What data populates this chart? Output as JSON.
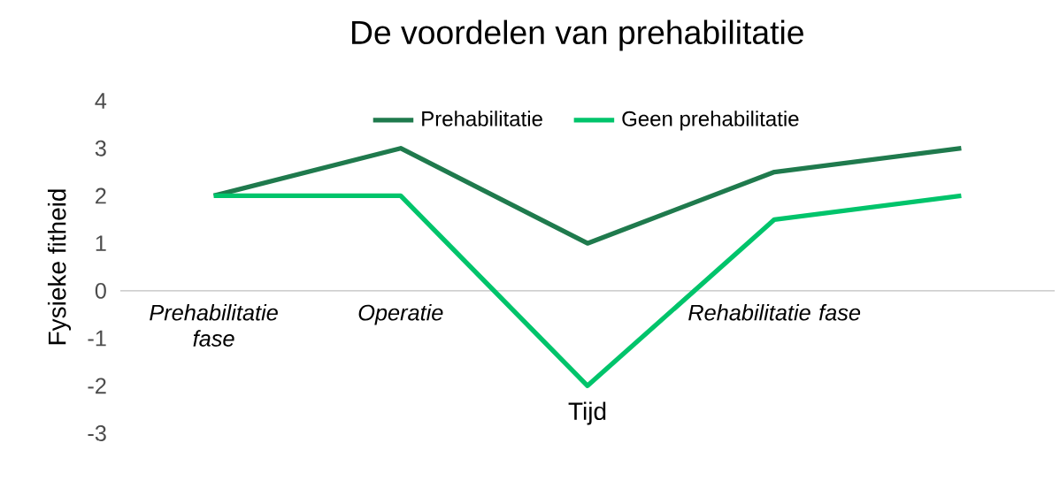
{
  "chart_data": {
    "type": "line",
    "title": "De voordelen van prehabilitatie",
    "xlabel": "Tijd",
    "ylabel": "Fysieke fitheid",
    "categories": [
      "*Prehabilitatie fase*",
      "*Operatie*",
      null,
      "*Rehabilitatie fase*",
      null
    ],
    "series": [
      {
        "name": "Prehabilitatie",
        "color": "#1f7a4d",
        "values": [
          2,
          3,
          1,
          2.5,
          3
        ]
      },
      {
        "name": "Geen prehabilitatie",
        "color": "#00c46b",
        "values": [
          2,
          2,
          -2,
          1.5,
          2
        ]
      }
    ],
    "ylim": [
      -3,
      4
    ],
    "yticks": [
      -3,
      -2,
      -1,
      0,
      1,
      2,
      3,
      4
    ],
    "legend": "top"
  }
}
